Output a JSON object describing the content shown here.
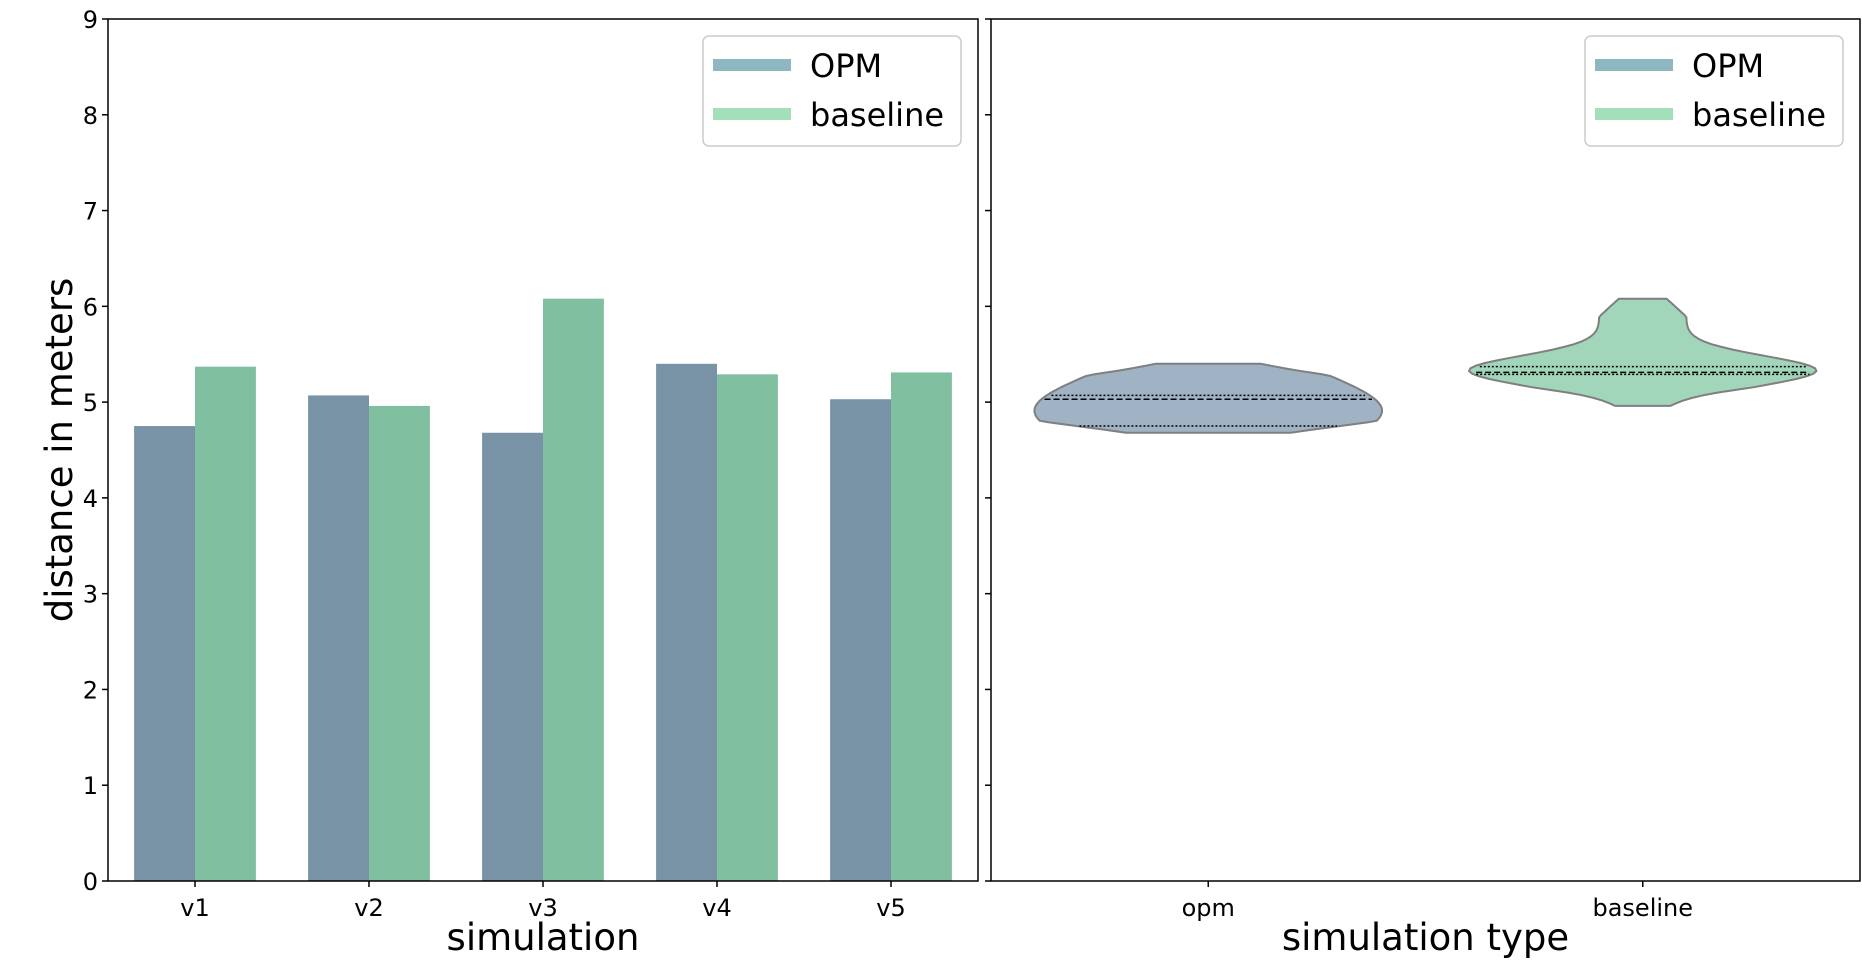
{
  "chart_data": [
    {
      "type": "bar",
      "categories": [
        "v1",
        "v2",
        "v3",
        "v4",
        "v5"
      ],
      "series": [
        {
          "name": "OPM",
          "values": [
            4.75,
            5.07,
            4.68,
            5.4,
            5.03
          ],
          "color": "#7893a6"
        },
        {
          "name": "baseline",
          "values": [
            5.37,
            4.96,
            6.08,
            5.29,
            5.31
          ],
          "color": "#80bfa0"
        }
      ],
      "xlabel": "simulation",
      "ylabel": "distance in meters",
      "ylim": [
        0,
        9
      ],
      "yticks": [
        "0",
        "1",
        "2",
        "3",
        "4",
        "5",
        "6",
        "7",
        "8",
        "9"
      ],
      "legend": {
        "placement": "top-right",
        "entries": [
          {
            "label": "OPM",
            "color": "#8db7c1"
          },
          {
            "label": "baseline",
            "color": "#a3dfb8"
          }
        ]
      }
    },
    {
      "type": "violin",
      "categories": [
        "opm",
        "baseline"
      ],
      "xlabel": "simulation type",
      "ylim": [
        0,
        9
      ],
      "sharey": true,
      "violins": [
        {
          "category": "opm",
          "min": 4.68,
          "max": 5.4,
          "q1": 4.75,
          "median": 5.03,
          "q3": 5.07,
          "color": "#9fb3c5"
        },
        {
          "category": "baseline",
          "min": 4.96,
          "max": 6.08,
          "q1": 5.29,
          "median": 5.31,
          "q3": 5.37,
          "color": "#a1d6bb"
        }
      ],
      "legend": {
        "placement": "top-right",
        "entries": [
          {
            "label": "OPM",
            "color": "#8db7c1"
          },
          {
            "label": "baseline",
            "color": "#a3dfb8"
          }
        ]
      }
    }
  ]
}
